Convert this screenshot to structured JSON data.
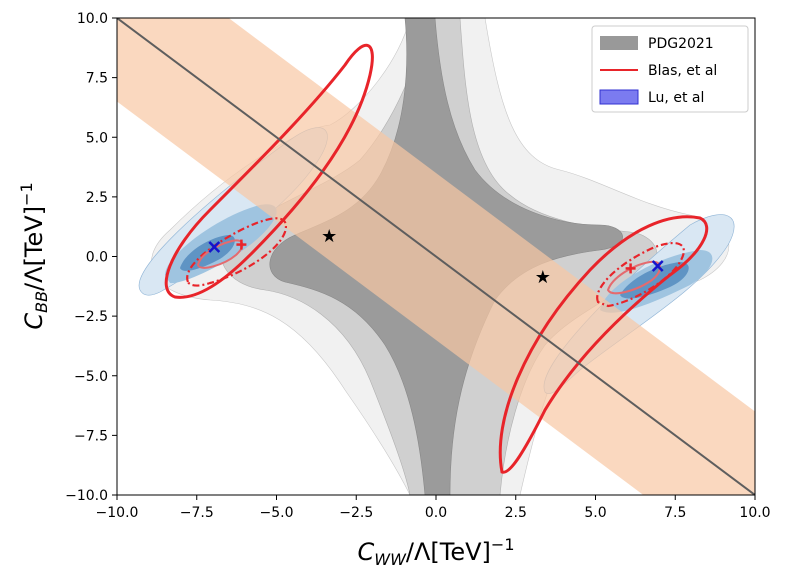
{
  "chart_data": {
    "type": "contour",
    "xlabel_main": "C",
    "xlabel_sub": "WW",
    "xlabel_rest": "/Λ[TeV]",
    "xlabel_sup": "−1",
    "ylabel_main": "C",
    "ylabel_sub": "BB",
    "ylabel_rest": "/Λ[TeV]",
    "ylabel_sup": "−1",
    "xlim": [
      -10,
      10
    ],
    "ylim": [
      -10,
      10
    ],
    "x_ticks": [
      -10,
      -7.5,
      -5,
      -2.5,
      0,
      2.5,
      5,
      7.5,
      10
    ],
    "y_ticks": [
      -10,
      -7.5,
      -5,
      -2.5,
      0,
      2.5,
      5,
      7.5,
      10
    ],
    "x_tick_labels": [
      "−10.0",
      "−7.5",
      "−5.0",
      "−2.5",
      "0.0",
      "2.5",
      "5.0",
      "7.5",
      "10.0"
    ],
    "y_tick_labels": [
      "−10.0",
      "−7.5",
      "−5.0",
      "−2.5",
      "0.0",
      "2.5",
      "5.0",
      "7.5",
      "10.0"
    ],
    "legend": [
      {
        "label": "PDG2021",
        "color": "#999999",
        "kind": "patch"
      },
      {
        "label": "Blas, et al",
        "color": "#e8242a",
        "kind": "line"
      },
      {
        "label": "Lu, et al",
        "color": "#7b7bf0",
        "kind": "patch"
      }
    ],
    "diagonal_line": {
      "from": [
        -10,
        10
      ],
      "to": [
        10,
        -10
      ],
      "color": "#5e5e5e"
    },
    "orange_band": {
      "slope": -1,
      "intercept_low": -3.5,
      "intercept_high": 3.5,
      "color": "#f8c8a4"
    },
    "pdg_star_points": [
      [
        -3.35,
        0.85
      ],
      [
        3.35,
        -0.85
      ]
    ],
    "blas_best_fit": [
      [
        -6.1,
        0.5
      ],
      [
        6.1,
        -0.5
      ]
    ],
    "lu_best_fit": [
      [
        -6.95,
        0.4
      ],
      [
        6.95,
        -0.4
      ]
    ],
    "colors": {
      "pdg_light": "#f1f1f1",
      "pdg_mid": "#d0d0d0",
      "pdg_dark": "#9b9b9b",
      "blas": "#e8242a",
      "lu_1": "#d9e7f3",
      "lu_2": "#9fc4e0",
      "lu_3": "#5f94c4",
      "blue_marker": "#1414cc"
    }
  }
}
